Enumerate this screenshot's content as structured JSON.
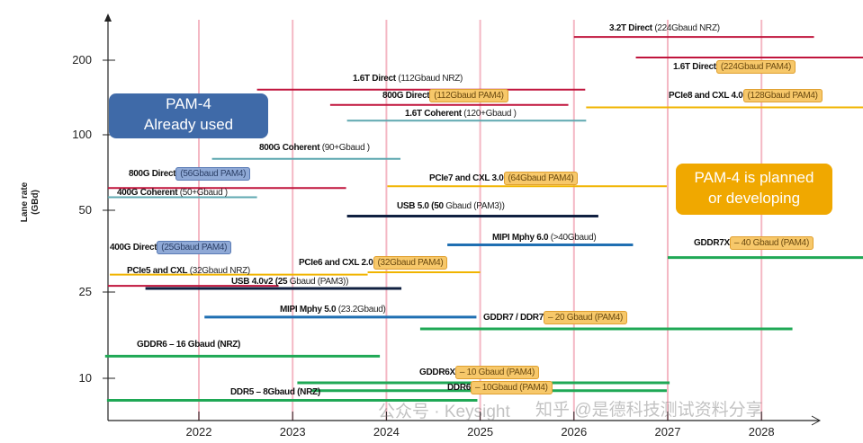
{
  "chart_data": {
    "type": "timeline",
    "title": "",
    "ylabel": "Lane rate (GBd)",
    "xlabel": "",
    "y_scale": "log",
    "y_ticks": [
      200,
      100,
      50,
      25,
      10
    ],
    "x_ticks": [
      2022,
      2023,
      2024,
      2025,
      2026,
      2027,
      2028
    ],
    "grid": "vertical lines at years",
    "series": [
      {
        "bold": "3.2T Direct",
        "normal": " (224Gbaud NRZ)",
        "hl": "",
        "color": "#c0143c",
        "start": 2026.0,
        "end": 2028.56,
        "rate": 248
      },
      {
        "bold": "1.6T Direct",
        "normal": "",
        "hl": "(224Gbaud PAM4)",
        "hl_style": "orange",
        "color": "#c0143c",
        "start": 2026.66,
        "end": 2029.1,
        "rate": 205
      },
      {
        "bold": "1.6T Direct",
        "normal": " (112Gbaud NRZ)",
        "hl": "",
        "color": "#c0143c",
        "start": 2022.62,
        "end": 2026.12,
        "rate": 152
      },
      {
        "bold": "800G Direct",
        "normal": "",
        "hl": "(112Gbaud PAM4)",
        "hl_style": "orange",
        "color": "#c0143c",
        "start": 2023.4,
        "end": 2025.94,
        "rate": 132
      },
      {
        "bold": "PCIe8 and CXL 4.0",
        "normal": "",
        "hl": "(128Gbaud PAM4)",
        "hl_style": "orange",
        "color": "#f0b400",
        "start": 2026.13,
        "end": 2029.1,
        "rate": 129
      },
      {
        "bold": "1.6T Coherent",
        "normal": " (120+Gbaud )",
        "hl": "",
        "color": "#5fa8b0",
        "start": 2023.58,
        "end": 2026.13,
        "rate": 114
      },
      {
        "bold": "800G Coherent",
        "normal": " (90+Gbaud )",
        "hl": "",
        "color": "#5fa8b0",
        "start": 2022.14,
        "end": 2024.15,
        "rate": 80
      },
      {
        "bold": "800G Direct",
        "normal": "",
        "hl": "(56Gbaud PAM4)",
        "hl_style": "blue",
        "color": "#c0143c",
        "start": 2021.03,
        "end": 2023.57,
        "rate": 61
      },
      {
        "bold": "PCIe7 and CXL 3.0",
        "normal": "",
        "hl": "(64Gbaud PAM4)",
        "hl_style": "orange",
        "color": "#f0b400",
        "start": 2024.01,
        "end": 2026.99,
        "rate": 62
      },
      {
        "bold": "400G Coherent",
        "normal": " (50+Gbaud )",
        "hl": "",
        "color": "#5fa8b0",
        "start": 2021.03,
        "end": 2022.62,
        "rate": 56
      },
      {
        "bold": "USB 5.0 (50",
        "normal": " Gbaud (PAM3))",
        "hl": "",
        "color": "#102040",
        "start": 2023.58,
        "end": 2026.26,
        "rate": 47
      },
      {
        "bold": "MIPI Mphy 6.0",
        "normal": " (>40Gbaud)",
        "hl": "",
        "color": "#1f6fb2",
        "start": 2024.65,
        "end": 2026.63,
        "rate": 36
      },
      {
        "bold": "GDDR7X",
        "normal": "",
        "hl": "– 40 Gbaud (PAM4)",
        "hl_style": "orange",
        "color": "#1fa855",
        "start": 2027.0,
        "end": 2029.1,
        "rate": 32
      },
      {
        "bold": "400G Direct",
        "normal": "",
        "hl": "(25Gbaud PAM4)",
        "hl_style": "blue",
        "color": "#c0143c",
        "start": 2021.03,
        "end": 2022.85,
        "rate": 24.6
      },
      {
        "bold": "PCIe5 and CXL",
        "normal": " (32Gbaud NRZ)",
        "hl": "",
        "color": "#f0b400",
        "start": 2021.05,
        "end": 2023.8,
        "rate": 27.3
      },
      {
        "bold": "PCIe6 and CXL 2.0",
        "normal": "",
        "hl": "(32Gbaud PAM4)",
        "hl_style": "orange",
        "color": "#f0b400",
        "start": 2023.8,
        "end": 2025.0,
        "rate": 27.9
      },
      {
        "bold": "USB 4.0v2 (25",
        "normal": " Gbaud (PAM3))",
        "hl": "",
        "color": "#102040",
        "start": 2021.43,
        "end": 2024.16,
        "rate": 24
      },
      {
        "bold": "MIPI Mphy 5.0",
        "normal": " (23.2Gbaud)",
        "hl": "",
        "color": "#1f6fb2",
        "start": 2022.06,
        "end": 2024.96,
        "rate": 18.4
      },
      {
        "bold": "GDDR7 / DDR7",
        "normal": "",
        "hl": "– 20 Gbaud (PAM4)",
        "hl_style": "orange",
        "color": "#1fa855",
        "start": 2024.36,
        "end": 2028.33,
        "rate": 16.5
      },
      {
        "bold": "GDDR6 – 16 Gbaud (NRZ)",
        "normal": "",
        "hl": "",
        "color": "#1fa855",
        "start": 2021.0,
        "end": 2023.93,
        "rate": 12.8
      },
      {
        "bold": "GDDR6X",
        "normal": "",
        "hl": "– 10 Gbaud (PAM4)",
        "hl_style": "orange",
        "color": "#1fa855",
        "start": 2023.05,
        "end": 2027.02,
        "rate": 10
      },
      {
        "bold": "DDR6",
        "normal": "",
        "hl": "– 10Gbaud (PAM4)",
        "hl_style": "orange",
        "color": "#1fa855",
        "start": 2023.2,
        "end": 2026.99,
        "rate": 9.3
      },
      {
        "bold": "DDR5 – 8Gbaud (NRZ)",
        "normal": "",
        "hl": "",
        "color": "#1fa855",
        "start": 2021.02,
        "end": 2024.97,
        "rate": 8.5
      }
    ],
    "annotations": [
      {
        "text_line1": "PAM-4",
        "text_line2": "Already used",
        "color": "#3f6aa8"
      },
      {
        "text_line1": "PAM-4 is planned",
        "text_line2": "or developing",
        "color": "#f0a800"
      }
    ]
  },
  "watermark": {
    "left": "公众号 · Keysight",
    "right": "知乎 @是德科技测试资料分享"
  }
}
